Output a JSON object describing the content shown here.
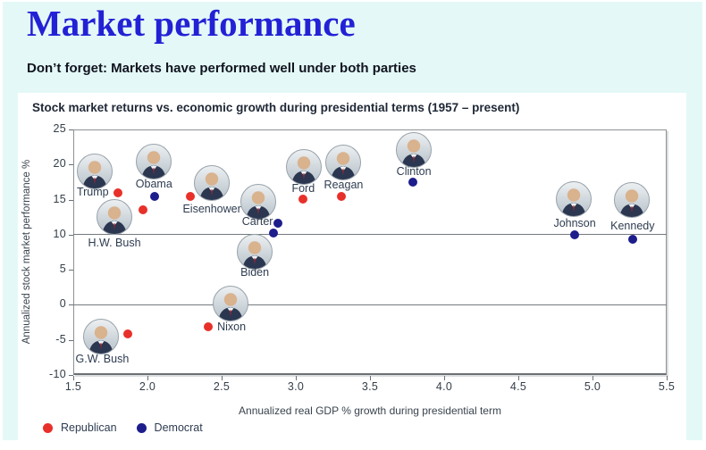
{
  "page": {
    "title": "Market performance",
    "subtitle": "Don’t forget: Markets have performed well under both parties",
    "background_color": "#e4f9f7",
    "title_color": "#2321d6"
  },
  "chart_data": {
    "type": "scatter",
    "title": "Stock market returns vs. economic growth during presidential terms (1957 – present)",
    "xlabel": "Annualized real GDP % growth during presidential term",
    "ylabel": "Annualized stock market performance %",
    "xlim": [
      1.5,
      5.5
    ],
    "ylim": [
      -10,
      25
    ],
    "x_ticks": [
      1.5,
      2.0,
      2.5,
      3.0,
      3.5,
      4.0,
      4.5,
      5.0,
      5.5
    ],
    "y_ticks": [
      25,
      20,
      15,
      10,
      5,
      0,
      -5,
      -10
    ],
    "gridlines_y": [
      10,
      0
    ],
    "grid": "horizontal lines at 10 and 0 only",
    "legend_position": "bottom-left",
    "marker_style": "colored dot with circular president portrait photo and name label",
    "series": [
      {
        "name": "Republican",
        "color": "#e8302a",
        "points": [
          {
            "label": "Trump",
            "x": 1.8,
            "y": 16.0
          },
          {
            "label": "H.W. Bush",
            "x": 1.97,
            "y": 13.5
          },
          {
            "label": "Eisenhower",
            "x": 2.29,
            "y": 15.5
          },
          {
            "label": "Ford",
            "x": 3.05,
            "y": 15.1
          },
          {
            "label": "Reagan",
            "x": 3.31,
            "y": 15.5
          },
          {
            "label": "G.W. Bush",
            "x": 1.87,
            "y": -4.1
          },
          {
            "label": "Nixon",
            "x": 2.41,
            "y": -3.1
          }
        ]
      },
      {
        "name": "Democrat",
        "color": "#1d1d8c",
        "points": [
          {
            "label": "Obama",
            "x": 2.05,
            "y": 15.5
          },
          {
            "label": "Clinton",
            "x": 3.79,
            "y": 17.5
          },
          {
            "label": "Carter",
            "x": 2.88,
            "y": 11.6
          },
          {
            "label": "Biden",
            "x": 2.85,
            "y": 10.3
          },
          {
            "label": "Johnson",
            "x": 4.88,
            "y": 10.0
          },
          {
            "label": "Kennedy",
            "x": 5.27,
            "y": 9.4
          }
        ]
      }
    ],
    "point_layout_offsets": {
      "Trump": {
        "portrait": [
          -26,
          -24
        ],
        "label": [
          -28,
          -1
        ]
      },
      "H.W. Bush": {
        "portrait": [
          -32,
          8
        ],
        "label": [
          -32,
          37
        ]
      },
      "Eisenhower": {
        "portrait": [
          24,
          -15
        ],
        "label": [
          24,
          14
        ]
      },
      "Ford": {
        "portrait": [
          1,
          -36
        ],
        "label": [
          0,
          -12
        ]
      },
      "Reagan": {
        "portrait": [
          2,
          -38
        ],
        "label": [
          2,
          -13
        ]
      },
      "G.W. Bush": {
        "portrait": [
          -30,
          3
        ],
        "label": [
          -29,
          28
        ]
      },
      "Nixon": {
        "portrait": [
          25,
          -26
        ],
        "label": [
          26,
          0
        ]
      },
      "Obama": {
        "portrait": [
          -1,
          -39
        ],
        "label": [
          -1,
          -14
        ]
      },
      "Clinton": {
        "portrait": [
          1,
          -36
        ],
        "label": [
          1,
          -12
        ]
      },
      "Carter": {
        "portrait": [
          -22,
          -24
        ],
        "label": [
          -23,
          -2
        ]
      },
      "Biden": {
        "portrait": [
          -21,
          21
        ],
        "label": [
          -21,
          44
        ]
      },
      "Johnson": {
        "portrait": [
          -1,
          -40
        ],
        "label": [
          0,
          -13
        ]
      },
      "Kennedy": {
        "portrait": [
          -1,
          -44
        ],
        "label": [
          0,
          -15
        ]
      }
    }
  }
}
